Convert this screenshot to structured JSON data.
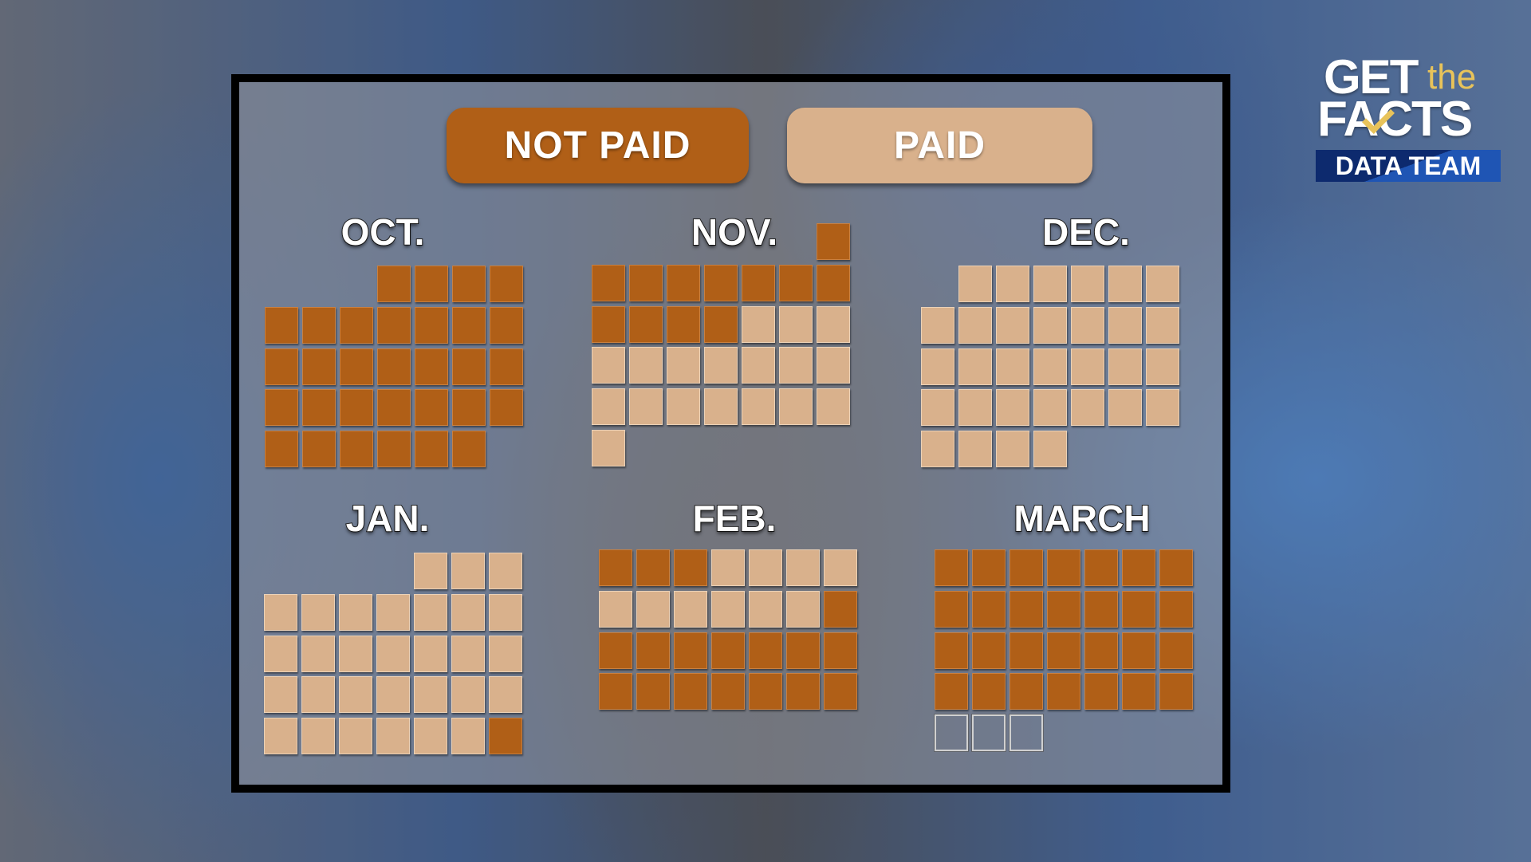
{
  "legend": {
    "not_paid_label": "NOT PAID",
    "paid_label": "PAID",
    "colors": {
      "not_paid": "#b05f17",
      "paid": "#d9b18c",
      "upcoming": "outline"
    }
  },
  "logo": {
    "line1": "GET",
    "line1b": "the",
    "line2": "FACTS",
    "line3": "DATA TEAM"
  },
  "chart_data": {
    "type": "calendar",
    "title": "",
    "week_start": "Sunday",
    "months": [
      {
        "label": "OCT.",
        "days": 31,
        "start_weekday": 3,
        "not_paid_days": [
          1,
          2,
          3,
          4,
          5,
          6,
          7,
          8,
          9,
          10,
          11,
          12,
          13,
          14,
          15,
          16,
          17,
          18,
          19,
          20,
          21,
          22,
          23,
          24,
          25,
          26,
          27,
          28,
          29,
          30,
          31
        ],
        "paid_days": [],
        "upcoming_days": []
      },
      {
        "label": "NOV.",
        "days": 30,
        "start_weekday": 6,
        "not_paid_days": [
          1,
          2,
          3,
          4,
          5,
          6,
          7,
          8,
          9,
          10,
          11,
          12
        ],
        "paid_days": [
          13,
          14,
          15,
          16,
          17,
          18,
          19,
          20,
          21,
          22,
          23,
          24,
          25,
          26,
          27,
          28,
          29,
          30
        ],
        "upcoming_days": []
      },
      {
        "label": "DEC.",
        "days": 31,
        "start_weekday": 1,
        "not_paid_days": [],
        "paid_days": [
          1,
          2,
          3,
          4,
          5,
          6,
          7,
          8,
          9,
          10,
          11,
          12,
          13,
          14,
          15,
          16,
          17,
          18,
          19,
          20,
          21,
          22,
          23,
          24,
          25,
          26,
          27,
          28,
          29,
          30,
          31
        ],
        "upcoming_days": []
      },
      {
        "label": "JAN.",
        "days": 31,
        "start_weekday": 4,
        "not_paid_days": [
          31
        ],
        "paid_days": [
          1,
          2,
          3,
          4,
          5,
          6,
          7,
          8,
          9,
          10,
          11,
          12,
          13,
          14,
          15,
          16,
          17,
          18,
          19,
          20,
          21,
          22,
          23,
          24,
          25,
          26,
          27,
          28,
          29,
          30
        ],
        "upcoming_days": []
      },
      {
        "label": "FEB.",
        "days": 28,
        "start_weekday": 0,
        "not_paid_days": [
          1,
          2,
          3,
          14,
          15,
          16,
          17,
          18,
          19,
          20,
          21,
          22,
          23,
          24,
          25,
          26,
          27,
          28
        ],
        "paid_days": [
          4,
          5,
          6,
          7,
          8,
          9,
          10,
          11,
          12,
          13
        ],
        "upcoming_days": []
      },
      {
        "label": "MARCH",
        "days": 31,
        "start_weekday": 0,
        "not_paid_days": [
          1,
          2,
          3,
          4,
          5,
          6,
          7,
          8,
          9,
          10,
          11,
          12,
          13,
          14,
          15,
          16,
          17,
          18,
          19,
          20,
          21,
          22,
          23,
          24,
          25,
          26,
          27,
          28
        ],
        "paid_days": [],
        "upcoming_days": [
          29,
          30,
          31
        ]
      }
    ]
  }
}
